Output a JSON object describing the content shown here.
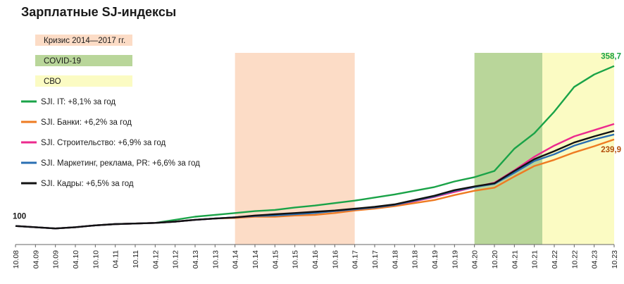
{
  "chart_data": {
    "type": "line",
    "title": "Зарплатные SJ-индексы",
    "x_labels": [
      "10.08",
      "04.09",
      "10.09",
      "04.10",
      "10.10",
      "04.11",
      "10.11",
      "04.12",
      "10.12",
      "04.13",
      "10.13",
      "04.14",
      "10.14",
      "04.15",
      "10.15",
      "04.16",
      "10.16",
      "04.17",
      "10.17",
      "04.18",
      "10.18",
      "04.19",
      "10.19",
      "04.20",
      "10.20",
      "04.21",
      "10.21",
      "04.22",
      "10.22",
      "04.23",
      "10.23"
    ],
    "bands": [
      {
        "name": "Кризис 2014—2017 гг.",
        "from": 11,
        "to": 17,
        "color": "#fcdcc6"
      },
      {
        "name": "COVID-19",
        "from": 23,
        "to": 26.4,
        "color": "#b9d69a"
      },
      {
        "name": "СВО",
        "from": 26.4,
        "to": 30,
        "color": "#fbfbc3"
      }
    ],
    "series": [
      {
        "name": "SJI. IT: +8,1% за год",
        "color": "#1aa348",
        "values": [
          100,
          98,
          96,
          98,
          101,
          103,
          104,
          105,
          110,
          115,
          118,
          121,
          124,
          126,
          130,
          133,
          137,
          141,
          146,
          151,
          157,
          163,
          172,
          179,
          189,
          225,
          250,
          285,
          325,
          345,
          358.7
        ]
      },
      {
        "name": "SJI. Банки: +6,2% за год",
        "color": "#ee7b22",
        "values": [
          100,
          98,
          96,
          98,
          101,
          103,
          104,
          105,
          107,
          110,
          112,
          113,
          115,
          115,
          117,
          118,
          121,
          125,
          128,
          132,
          137,
          142,
          150,
          157,
          162,
          180,
          197,
          207,
          219,
          229,
          239.9
        ]
      },
      {
        "name": "SJI. Строительство: +6,9% за год",
        "color": "#ec2a8e",
        "values": [
          100,
          98,
          96,
          98,
          101,
          103,
          104,
          105,
          107,
          110,
          112,
          114,
          116,
          118,
          120,
          122,
          124,
          127,
          130,
          134,
          140,
          147,
          155,
          163,
          170,
          190,
          212,
          230,
          245,
          255,
          265
        ]
      },
      {
        "name": "SJI. Маркетинг, реклама, PR: +6,6% за год",
        "color": "#2a6fb3",
        "values": [
          100,
          98,
          96,
          98,
          101,
          103,
          104,
          105,
          107,
          110,
          112,
          114,
          116,
          117,
          119,
          121,
          124,
          127,
          130,
          134,
          141,
          148,
          157,
          163,
          168,
          186,
          205,
          216,
          230,
          240,
          248
        ]
      },
      {
        "name": "SJI. Кадры: +6,5% за год",
        "color": "#111111",
        "values": [
          100,
          98,
          96,
          98,
          101,
          103,
          104,
          105,
          107,
          110,
          112,
          114,
          117,
          119,
          121,
          123,
          125,
          128,
          131,
          135,
          142,
          149,
          158,
          164,
          169,
          189,
          208,
          221,
          235,
          245,
          254
        ]
      }
    ],
    "annotations": [
      {
        "text": "100",
        "series": 0,
        "index": 0,
        "color": "#1a1a1a"
      },
      {
        "text": "358,7",
        "series": 0,
        "index": 30,
        "color": "#1aa348"
      },
      {
        "text": "239,9",
        "series": 1,
        "index": 30,
        "color": "#b34e0c"
      }
    ],
    "ylim": [
      70,
      380
    ]
  }
}
